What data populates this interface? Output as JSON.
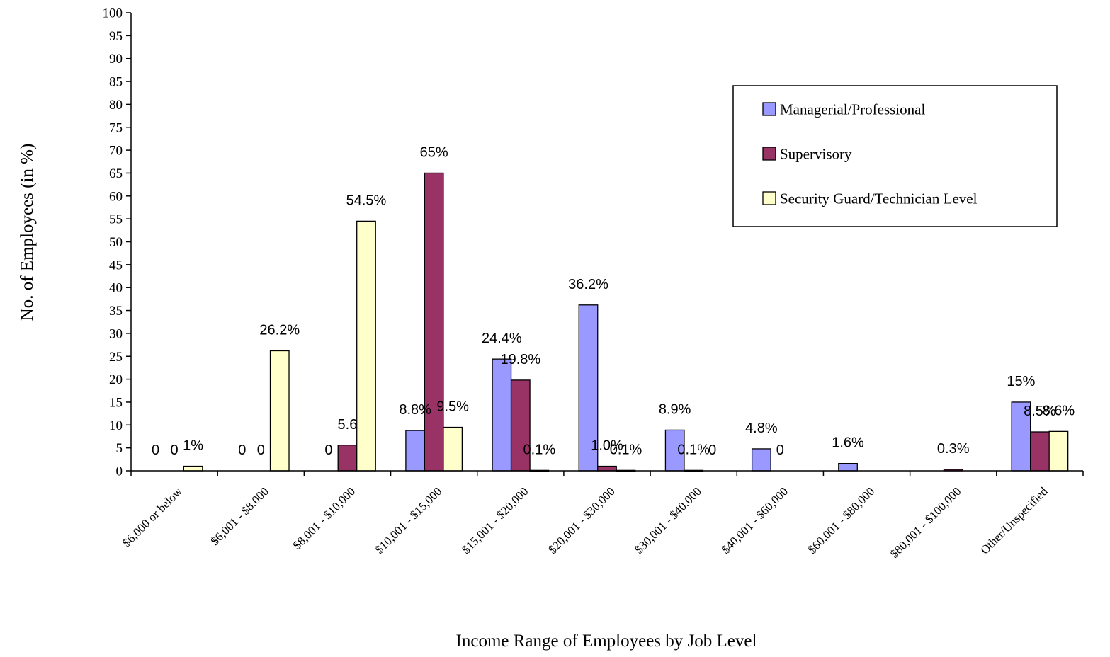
{
  "chart_data": {
    "type": "bar",
    "xlabel": "Income Range of Employees by Job Level",
    "ylabel": "No. of Employees (in %)",
    "ylim": [
      0,
      100
    ],
    "yticks": [
      0,
      5,
      10,
      15,
      20,
      25,
      30,
      35,
      40,
      45,
      50,
      55,
      60,
      65,
      70,
      75,
      80,
      85,
      90,
      95,
      100
    ],
    "grid": false,
    "legend_position": "top-right",
    "categories": [
      "$6,000 or below",
      "$6,001 - $8,000",
      "$8,001 - $10,000",
      "$10,001 - $15,000",
      "$15,001 - $20,000",
      "$20,001 - $30,000",
      "$30,001 - $40,000",
      "$40,001 - $60,000",
      "$60,001 - $80,000",
      "$80,001 - $100,000",
      "Other/Unspecified"
    ],
    "series": [
      {
        "name": "Managerial/Professional",
        "color": "#9999FF",
        "values": [
          0,
          0,
          0,
          8.8,
          24.4,
          36.2,
          8.9,
          4.8,
          1.6,
          0,
          15
        ],
        "labels": [
          "0",
          "0",
          "0",
          "8.8%",
          "24.4%",
          "36.2%",
          "8.9%",
          "4.8%",
          "1.6%",
          "",
          "15%"
        ]
      },
      {
        "name": "Supervisory",
        "color": "#993366",
        "values": [
          0,
          0,
          5.6,
          65,
          19.8,
          1.0,
          0.1,
          0,
          0,
          0.3,
          8.5
        ],
        "labels": [
          "0",
          "0",
          "5.6",
          "65%",
          "19.8%",
          "1.0%",
          "0.1%",
          "0",
          "",
          "0.3%",
          "8.5%"
        ]
      },
      {
        "name": "Security Guard/Technician Level",
        "color": "#FFFFCC",
        "values": [
          1,
          26.2,
          54.5,
          9.5,
          0.1,
          0.1,
          0,
          0,
          0,
          0,
          8.6
        ],
        "labels": [
          "1%",
          "26.2%",
          "54.5%",
          "9.5%",
          "0.1%",
          "0.1%",
          "0",
          "",
          "",
          "",
          "8.6%"
        ]
      }
    ]
  }
}
